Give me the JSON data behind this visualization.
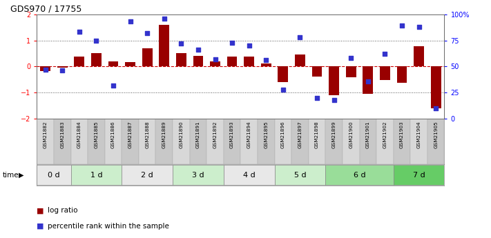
{
  "title": "GDS970 / 17755",
  "samples": [
    "GSM21882",
    "GSM21883",
    "GSM21884",
    "GSM21885",
    "GSM21886",
    "GSM21887",
    "GSM21888",
    "GSM21889",
    "GSM21890",
    "GSM21891",
    "GSM21892",
    "GSM21893",
    "GSM21894",
    "GSM21895",
    "GSM21896",
    "GSM21897",
    "GSM21898",
    "GSM21899",
    "GSM21900",
    "GSM21901",
    "GSM21902",
    "GSM21903",
    "GSM21904",
    "GSM21905"
  ],
  "log_ratio": [
    -0.18,
    -0.04,
    0.38,
    0.5,
    0.2,
    0.17,
    0.7,
    1.6,
    0.5,
    0.4,
    0.2,
    0.38,
    0.38,
    0.12,
    -0.6,
    0.47,
    -0.38,
    -1.1,
    -0.4,
    -1.05,
    -0.52,
    -0.62,
    0.78,
    -1.6
  ],
  "pct_rank": [
    47,
    46,
    83,
    75,
    32,
    93,
    82,
    96,
    72,
    66,
    57,
    73,
    70,
    56,
    28,
    78,
    20,
    18,
    58,
    36,
    62,
    89,
    88,
    10
  ],
  "time_groups": [
    {
      "label": "0 d",
      "start": 0,
      "end": 2,
      "color": "#e8e8e8"
    },
    {
      "label": "1 d",
      "start": 2,
      "end": 5,
      "color": "#cceecc"
    },
    {
      "label": "2 d",
      "start": 5,
      "end": 8,
      "color": "#e8e8e8"
    },
    {
      "label": "3 d",
      "start": 8,
      "end": 11,
      "color": "#cceecc"
    },
    {
      "label": "4 d",
      "start": 11,
      "end": 14,
      "color": "#e8e8e8"
    },
    {
      "label": "5 d",
      "start": 14,
      "end": 17,
      "color": "#cceecc"
    },
    {
      "label": "6 d",
      "start": 17,
      "end": 21,
      "color": "#99dd99"
    },
    {
      "label": "7 d",
      "start": 21,
      "end": 24,
      "color": "#66cc66"
    }
  ],
  "bar_color": "#990000",
  "dot_color": "#3333cc",
  "zero_line_color": "#cc0000",
  "dotted_line_color": "#555555",
  "ylim_left": [
    -2,
    2
  ],
  "ylim_right": [
    0,
    100
  ],
  "yticks_left": [
    -2,
    -1,
    0,
    1,
    2
  ],
  "yticks_right": [
    0,
    25,
    50,
    75,
    100
  ],
  "ytick_labels_right": [
    "0",
    "25",
    "50",
    "75",
    "100%"
  ],
  "bg_color": "#ffffff",
  "sample_bg_even": "#d8d8d8",
  "sample_bg_odd": "#c8c8c8"
}
